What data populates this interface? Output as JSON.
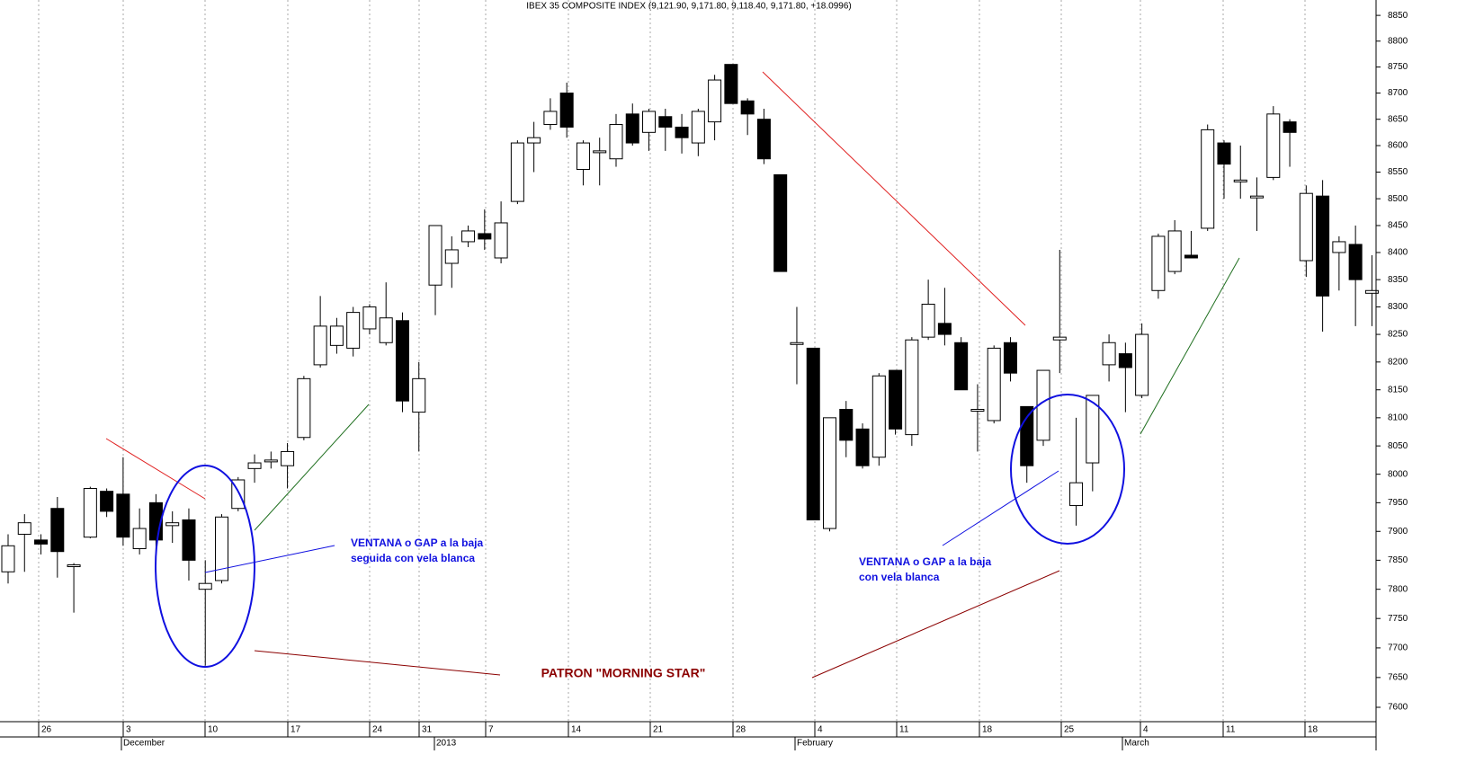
{
  "chart_data": {
    "type": "candlestick",
    "title": "IBEX 35 COMPOSITE INDEX (9,121.90, 9,171.80, 9,118.40, 9,171.80, +18.0996)",
    "open": [
      7830,
      7895,
      7885,
      7940,
      7842,
      7890,
      7970,
      7965,
      7870,
      7950,
      7910,
      7920,
      7800,
      7815,
      7940,
      8010,
      8025,
      8015,
      8065,
      8195,
      8230,
      8225,
      8260,
      8235,
      8275,
      8110,
      8340,
      8380,
      8420,
      8435,
      8390,
      8495,
      8605,
      8640,
      8700,
      8555,
      8590,
      8575,
      8660,
      8625,
      8655,
      8635,
      8605,
      8645,
      8755,
      8685,
      8650,
      8545,
      8235,
      8225,
      7905,
      8115,
      8080,
      8030,
      8185,
      8070,
      8245,
      8270,
      8235,
      8115,
      8095,
      8235,
      8120,
      8060,
      8240,
      7945,
      8020,
      8195,
      8215,
      8140,
      8330,
      8365,
      8395,
      8445,
      8605,
      8535,
      8505,
      8540,
      8645,
      8385,
      8505,
      8400,
      8415,
      8325
    ],
    "high": [
      7895,
      7930,
      7895,
      7960,
      7845,
      7978,
      7975,
      8030,
      7940,
      7965,
      7935,
      7940,
      7850,
      7930,
      7995,
      8035,
      8040,
      8055,
      8175,
      8320,
      8280,
      8300,
      8305,
      8345,
      8290,
      8200,
      8450,
      8430,
      8450,
      8480,
      8495,
      8610,
      8645,
      8690,
      8720,
      8610,
      8615,
      8660,
      8680,
      8670,
      8670,
      8660,
      8670,
      8735,
      8755,
      8690,
      8670,
      8545,
      8300,
      8225,
      8100,
      8130,
      8090,
      8180,
      8185,
      8245,
      8350,
      8335,
      8245,
      8160,
      8230,
      8245,
      8120,
      8185,
      8405,
      8100,
      8140,
      8250,
      8235,
      8270,
      8435,
      8460,
      8440,
      8640,
      8610,
      8600,
      8540,
      8675,
      8650,
      8525,
      8535,
      8430,
      8450,
      8395
    ],
    "low": [
      7810,
      7830,
      7860,
      7820,
      7760,
      7888,
      7925,
      7875,
      7860,
      7860,
      7880,
      7815,
      7670,
      7810,
      7935,
      7985,
      8010,
      7975,
      8060,
      8190,
      8215,
      8210,
      8250,
      8230,
      8110,
      8040,
      8285,
      8335,
      8410,
      8405,
      8380,
      8490,
      8550,
      8630,
      8615,
      8525,
      8525,
      8560,
      8600,
      8590,
      8590,
      8585,
      8580,
      8610,
      8680,
      8620,
      8565,
      8365,
      8160,
      7920,
      7900,
      8030,
      8010,
      8015,
      8070,
      8050,
      8240,
      8230,
      8150,
      8040,
      8090,
      8165,
      7985,
      8050,
      8180,
      7910,
      7970,
      8165,
      8110,
      8135,
      8315,
      8360,
      8390,
      8440,
      8500,
      8500,
      8440,
      8535,
      8560,
      8355,
      8255,
      8330,
      8265,
      8265
    ],
    "close": [
      7875,
      7915,
      7878,
      7865,
      7842,
      7975,
      7935,
      7890,
      7905,
      7885,
      7915,
      7850,
      7810,
      7925,
      7990,
      8020,
      8025,
      8040,
      8170,
      8265,
      8265,
      8290,
      8300,
      8280,
      8130,
      8170,
      8450,
      8405,
      8440,
      8425,
      8455,
      8605,
      8615,
      8665,
      8635,
      8605,
      8590,
      8640,
      8605,
      8665,
      8635,
      8615,
      8665,
      8725,
      8680,
      8660,
      8575,
      8365,
      8235,
      7920,
      8100,
      8060,
      8015,
      8175,
      8080,
      8240,
      8305,
      8250,
      8150,
      8115,
      8225,
      8180,
      8015,
      8185,
      8245,
      7985,
      8140,
      8235,
      8190,
      8250,
      8430,
      8440,
      8390,
      8630,
      8565,
      8535,
      8505,
      8660,
      8625,
      8510,
      8320,
      8420,
      8350,
      8330
    ],
    "log": true,
    "ylim": [
      7576,
      8880
    ],
    "yticks": [
      7600,
      7650,
      7700,
      7750,
      7800,
      7850,
      7900,
      7950,
      8000,
      8050,
      8100,
      8150,
      8200,
      8250,
      8300,
      8350,
      8400,
      8450,
      8500,
      8550,
      8600,
      8650,
      8700,
      8750,
      8800,
      8850
    ],
    "up_color": "#ffffff",
    "down_color": "#000000",
    "day_labels": [
      "26",
      "3",
      "10",
      "17",
      "24",
      "31",
      "7",
      "14",
      "21",
      "28",
      "4",
      "11",
      "18",
      "25",
      "4",
      "11",
      "18"
    ],
    "period_labels": [
      "December",
      "2013",
      "February",
      "March"
    ],
    "annotations": {
      "gap_left": [
        "VENTANA o GAP a la baja",
        "seguida con vela blanca"
      ],
      "gap_right": [
        "VENTANA o GAP a la baja",
        "con vela blanca"
      ],
      "pattern": "PATRON \"MORNING STAR\""
    }
  }
}
